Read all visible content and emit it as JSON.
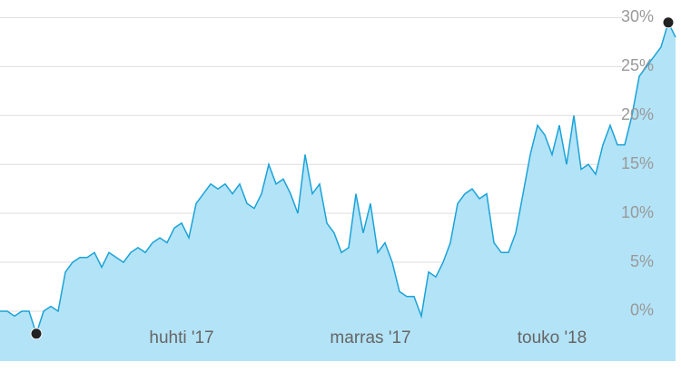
{
  "chart_data": {
    "type": "area",
    "categories": [
      null,
      null,
      null,
      null,
      null,
      null,
      null,
      null,
      null,
      null,
      null,
      null,
      null,
      null,
      null,
      null,
      null,
      null,
      null,
      null,
      null,
      null,
      null,
      null,
      null,
      "huhti '17",
      null,
      null,
      null,
      null,
      null,
      null,
      null,
      null,
      null,
      null,
      null,
      null,
      null,
      null,
      null,
      null,
      null,
      null,
      null,
      null,
      null,
      null,
      null,
      null,
      null,
      "marras '17",
      null,
      null,
      null,
      null,
      null,
      null,
      null,
      null,
      null,
      null,
      null,
      null,
      null,
      null,
      null,
      null,
      null,
      null,
      null,
      null,
      null,
      null,
      null,
      null,
      "touko '18",
      null,
      null,
      null,
      null,
      null,
      null,
      null,
      null,
      null,
      null,
      null,
      null,
      null,
      null,
      null,
      null,
      null
    ],
    "values": [
      0,
      0,
      -0.5,
      0,
      0,
      -2.3,
      0,
      0.5,
      0,
      4,
      5,
      5.5,
      5.5,
      6,
      4.5,
      6,
      5.5,
      5,
      6,
      6.5,
      6,
      7,
      7.5,
      7,
      8.5,
      9,
      7.5,
      11,
      12,
      13,
      12.5,
      13,
      12,
      13,
      11,
      10.5,
      12,
      15,
      13,
      13.5,
      12,
      10,
      16,
      12,
      13,
      9,
      8,
      6,
      6.5,
      12,
      8,
      11,
      6,
      7,
      5,
      2,
      1.5,
      1.5,
      -0.5,
      4,
      3.5,
      5,
      7,
      11,
      12,
      12.5,
      11.5,
      12,
      7,
      6,
      6,
      8,
      12,
      16,
      19,
      18,
      16,
      19,
      15,
      20,
      14.5,
      15,
      14,
      17,
      19,
      17,
      17,
      20,
      24,
      25,
      26,
      27,
      29.5,
      28
    ],
    "color": "#1aa3d8",
    "area_color": "#b3e3f7",
    "ylim": [
      -5.1,
      31.8
    ],
    "yticks": [
      {
        "value": 0,
        "label": "0%"
      },
      {
        "value": 5,
        "label": "5%"
      },
      {
        "value": 10,
        "label": "10%"
      },
      {
        "value": 15,
        "label": "15%"
      },
      {
        "value": 20,
        "label": "20%"
      },
      {
        "value": 25,
        "label": "25%"
      },
      {
        "value": 30,
        "label": "30%"
      }
    ],
    "grid": true,
    "y_axis_side": "right"
  }
}
